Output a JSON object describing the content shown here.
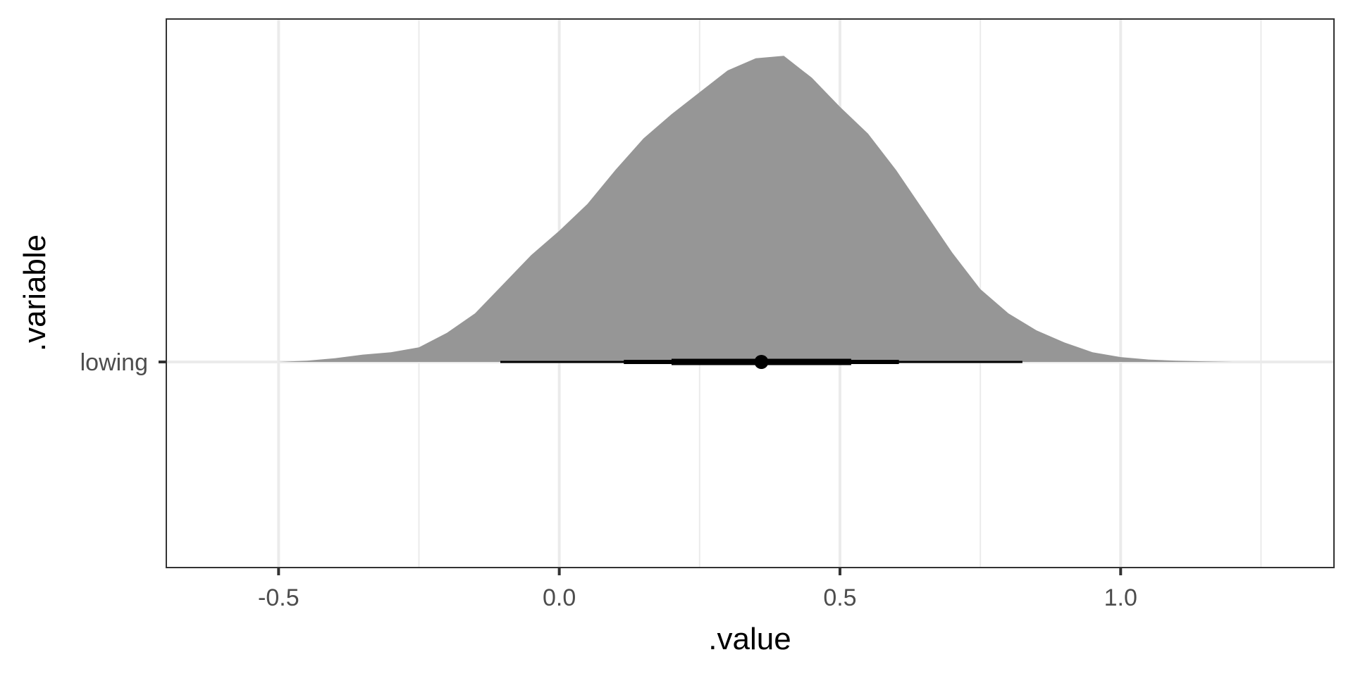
{
  "chart_data": {
    "type": "area",
    "subtype": "halfeye",
    "title": "",
    "xlabel": ".value",
    "ylabel": ".variable",
    "xlim": [
      -0.7,
      1.38
    ],
    "x_ticks": [
      {
        "value": -0.5,
        "label": "-0.5"
      },
      {
        "value": 0.0,
        "label": "0.0"
      },
      {
        "value": 0.5,
        "label": "0.5"
      },
      {
        "value": 1.0,
        "label": "1.0"
      }
    ],
    "x_minor_ticks": [
      -0.25,
      0.25,
      0.75,
      1.25
    ],
    "y_categories": [
      "lowing"
    ],
    "grid": true,
    "legend": "none",
    "density": {
      "fill": "#969696",
      "x": [
        -0.5,
        -0.45,
        -0.4,
        -0.35,
        -0.3,
        -0.25,
        -0.2,
        -0.15,
        -0.1,
        -0.05,
        0.0,
        0.05,
        0.1,
        0.15,
        0.2,
        0.25,
        0.3,
        0.35,
        0.4,
        0.45,
        0.5,
        0.55,
        0.6,
        0.65,
        0.7,
        0.75,
        0.8,
        0.85,
        0.9,
        0.95,
        1.0,
        1.05,
        1.1,
        1.15,
        1.2,
        1.25,
        1.3
      ],
      "y": [
        0.0,
        0.005,
        0.015,
        0.03,
        0.04,
        0.06,
        0.12,
        0.2,
        0.32,
        0.44,
        0.54,
        0.65,
        0.79,
        0.92,
        1.02,
        1.11,
        1.2,
        1.25,
        1.26,
        1.17,
        1.05,
        0.94,
        0.79,
        0.62,
        0.45,
        0.3,
        0.2,
        0.13,
        0.08,
        0.04,
        0.02,
        0.01,
        0.005,
        0.002,
        0.0,
        0.0,
        0.0
      ]
    },
    "point_interval": {
      "point": 0.36,
      "intervals": [
        {
          "lower": 0.2,
          "upper": 0.52,
          "line": "thick"
        },
        {
          "lower": 0.115,
          "upper": 0.605,
          "line": "medium"
        },
        {
          "lower": -0.105,
          "upper": 0.825,
          "line": "thin"
        }
      ]
    },
    "colors": {
      "density": "#969696",
      "interval": "#000000",
      "grid": "#ebebeb",
      "panel_border": "#333333"
    }
  }
}
